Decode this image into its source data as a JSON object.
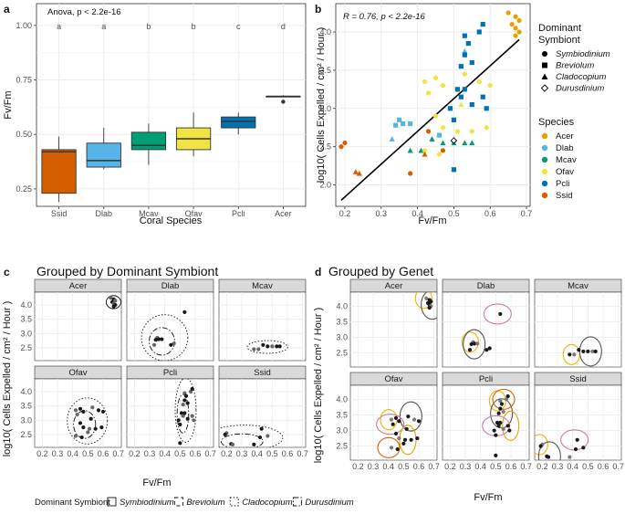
{
  "figure": {
    "panel_labels": [
      "a",
      "b",
      "c",
      "d"
    ],
    "panel_c_title": "Grouped by Dominant Symbiont",
    "panel_d_title": "Grouped by Genet",
    "facets": [
      "Acer",
      "Dlab",
      "Mcav",
      "Ofav",
      "Pcli",
      "Ssid"
    ]
  },
  "colors": {
    "Acer": "#E69F00",
    "Dlab": "#56B4E9",
    "Mcav": "#009E73",
    "Ofav": "#F0E442",
    "Pcli": "#0072B2",
    "Ssid": "#D55E00"
  },
  "chart_data": [
    {
      "type": "box",
      "panel": "a",
      "annotation": "Anova, p < 2.2e-16",
      "xlabel": "Coral Species",
      "ylabel": "Fv/Fm",
      "ylim": [
        0.17,
        1.1
      ],
      "yticks": [
        "0.25",
        "0.50",
        "0.75",
        "1.00"
      ],
      "categories": [
        "Ssid",
        "Dlab",
        "Mcav",
        "Ofav",
        "Pcli",
        "Acer"
      ],
      "letters": [
        "a",
        "a",
        "b",
        "b",
        "c",
        "d"
      ],
      "boxes": [
        {
          "min": 0.19,
          "q1": 0.23,
          "median": 0.42,
          "q3": 0.43,
          "max": 0.49
        },
        {
          "min": 0.34,
          "q1": 0.35,
          "median": 0.38,
          "q3": 0.46,
          "max": 0.53
        },
        {
          "min": 0.36,
          "q1": 0.43,
          "median": 0.45,
          "q3": 0.51,
          "max": 0.55
        },
        {
          "min": 0.4,
          "q1": 0.43,
          "median": 0.48,
          "q3": 0.53,
          "max": 0.6
        },
        {
          "min": 0.5,
          "q1": 0.53,
          "median": 0.56,
          "q3": 0.58,
          "max": 0.6
        },
        {
          "min": 0.67,
          "q1": 0.675,
          "median": 0.675,
          "q3": 0.675,
          "max": 0.68
        }
      ],
      "outliers": [
        {
          "category": "Acer",
          "y": 0.65
        }
      ]
    },
    {
      "type": "scatter",
      "panel": "b",
      "annotation": "R = 0.76, p < 2.2e-16",
      "xlabel": "Fv/Fm",
      "ylabel": "log10( Cells Expelled / cm² / Hour )",
      "xlim": [
        0.175,
        0.71
      ],
      "ylim": [
        1.72,
        4.37
      ],
      "xticks": [
        "0.2",
        "0.3",
        "0.4",
        "0.5",
        "0.6",
        "0.7"
      ],
      "yticks": [
        "2.0",
        "2.5",
        "3.0",
        "3.5",
        "4.0"
      ],
      "regression": {
        "x": [
          0.19,
          0.68
        ],
        "y": [
          1.8,
          3.9
        ]
      },
      "legend_symbiont_title": "Dominant Symbiont",
      "symbionts": [
        "Symbiodinium",
        "Breviolum",
        "Cladocopium",
        "Durusdinium"
      ],
      "legend_species_title": "Species",
      "points": [
        {
          "sp": "Acer",
          "shape": "circle",
          "x": 0.65,
          "y": 4.25
        },
        {
          "sp": "Acer",
          "shape": "circle",
          "x": 0.67,
          "y": 4.2
        },
        {
          "sp": "Acer",
          "shape": "circle",
          "x": 0.66,
          "y": 4.1
        },
        {
          "sp": "Acer",
          "shape": "circle",
          "x": 0.67,
          "y": 4.05
        },
        {
          "sp": "Acer",
          "shape": "circle",
          "x": 0.68,
          "y": 4.0
        },
        {
          "sp": "Acer",
          "shape": "circle",
          "x": 0.67,
          "y": 3.95
        },
        {
          "sp": "Acer",
          "shape": "circle",
          "x": 0.68,
          "y": 4.15
        },
        {
          "sp": "Dlab",
          "shape": "square",
          "x": 0.35,
          "y": 2.85
        },
        {
          "sp": "Dlab",
          "shape": "square",
          "x": 0.36,
          "y": 2.8
        },
        {
          "sp": "Dlab",
          "shape": "square",
          "x": 0.34,
          "y": 2.78
        },
        {
          "sp": "Dlab",
          "shape": "triangle",
          "x": 0.33,
          "y": 2.6
        },
        {
          "sp": "Dlab",
          "shape": "square",
          "x": 0.38,
          "y": 2.8
        },
        {
          "sp": "Dlab",
          "shape": "triangle",
          "x": 0.53,
          "y": 3.75
        },
        {
          "sp": "Dlab",
          "shape": "square",
          "x": 0.46,
          "y": 2.65
        },
        {
          "sp": "Dlab",
          "shape": "triangle",
          "x": 0.44,
          "y": 2.6
        },
        {
          "sp": "Mcav",
          "shape": "triangle",
          "x": 0.41,
          "y": 2.45
        },
        {
          "sp": "Mcav",
          "shape": "triangle",
          "x": 0.44,
          "y": 2.6
        },
        {
          "sp": "Mcav",
          "shape": "triangle",
          "x": 0.47,
          "y": 2.55
        },
        {
          "sp": "Mcav",
          "shape": "triangle",
          "x": 0.5,
          "y": 2.55
        },
        {
          "sp": "Mcav",
          "shape": "triangle",
          "x": 0.53,
          "y": 2.55
        },
        {
          "sp": "Mcav",
          "shape": "triangle",
          "x": 0.55,
          "y": 2.55
        },
        {
          "sp": "Mcav",
          "shape": "triangle",
          "x": 0.38,
          "y": 2.45
        },
        {
          "sp": "Ofav",
          "shape": "circle",
          "x": 0.42,
          "y": 3.35
        },
        {
          "sp": "Ofav",
          "shape": "circle",
          "x": 0.45,
          "y": 3.4
        },
        {
          "sp": "Ofav",
          "shape": "circle",
          "x": 0.47,
          "y": 3.3
        },
        {
          "sp": "Ofav",
          "shape": "circle",
          "x": 0.53,
          "y": 3.45
        },
        {
          "sp": "Ofav",
          "shape": "circle",
          "x": 0.57,
          "y": 3.35
        },
        {
          "sp": "Ofav",
          "shape": "circle",
          "x": 0.6,
          "y": 3.3
        },
        {
          "sp": "Ofav",
          "shape": "circle",
          "x": 0.43,
          "y": 3.2
        },
        {
          "sp": "Ofav",
          "shape": "circle",
          "x": 0.45,
          "y": 2.9
        },
        {
          "sp": "Ofav",
          "shape": "circle",
          "x": 0.47,
          "y": 2.75
        },
        {
          "sp": "Ofav",
          "shape": "circle",
          "x": 0.51,
          "y": 2.7
        },
        {
          "sp": "Ofav",
          "shape": "circle",
          "x": 0.55,
          "y": 2.7
        },
        {
          "sp": "Ofav",
          "shape": "circle",
          "x": 0.59,
          "y": 2.75
        },
        {
          "sp": "Ofav",
          "shape": "circle",
          "x": 0.42,
          "y": 2.45
        },
        {
          "sp": "Ofav",
          "shape": "circle",
          "x": 0.46,
          "y": 2.4
        },
        {
          "sp": "Ofav",
          "shape": "triangle",
          "x": 0.52,
          "y": 3.05
        },
        {
          "sp": "Ofav",
          "shape": "diamond",
          "x": 0.5,
          "y": 2.58
        },
        {
          "sp": "Pcli",
          "shape": "square",
          "x": 0.53,
          "y": 3.95
        },
        {
          "sp": "Pcli",
          "shape": "square",
          "x": 0.54,
          "y": 3.85
        },
        {
          "sp": "Pcli",
          "shape": "square",
          "x": 0.53,
          "y": 3.7
        },
        {
          "sp": "Pcli",
          "shape": "square",
          "x": 0.52,
          "y": 3.55
        },
        {
          "sp": "Pcli",
          "shape": "square",
          "x": 0.55,
          "y": 3.6
        },
        {
          "sp": "Pcli",
          "shape": "square",
          "x": 0.51,
          "y": 3.25
        },
        {
          "sp": "Pcli",
          "shape": "square",
          "x": 0.52,
          "y": 3.15
        },
        {
          "sp": "Pcli",
          "shape": "square",
          "x": 0.49,
          "y": 3.0
        },
        {
          "sp": "Pcli",
          "shape": "square",
          "x": 0.55,
          "y": 3.05
        },
        {
          "sp": "Pcli",
          "shape": "square",
          "x": 0.58,
          "y": 3.15
        },
        {
          "sp": "Pcli",
          "shape": "square",
          "x": 0.5,
          "y": 2.85
        },
        {
          "sp": "Pcli",
          "shape": "square",
          "x": 0.5,
          "y": 2.2
        },
        {
          "sp": "Pcli",
          "shape": "square",
          "x": 0.57,
          "y": 4.0
        },
        {
          "sp": "Pcli",
          "shape": "square",
          "x": 0.58,
          "y": 4.1
        },
        {
          "sp": "Pcli",
          "shape": "square",
          "x": 0.53,
          "y": 3.25
        },
        {
          "sp": "Pcli",
          "shape": "square",
          "x": 0.59,
          "y": 3.0
        },
        {
          "sp": "Ssid",
          "shape": "circle",
          "x": 0.2,
          "y": 2.55
        },
        {
          "sp": "Ssid",
          "shape": "circle",
          "x": 0.19,
          "y": 2.5
        },
        {
          "sp": "Ssid",
          "shape": "triangle",
          "x": 0.23,
          "y": 2.17
        },
        {
          "sp": "Ssid",
          "shape": "triangle",
          "x": 0.24,
          "y": 2.15
        },
        {
          "sp": "Ssid",
          "shape": "circle",
          "x": 0.38,
          "y": 2.15
        },
        {
          "sp": "Ssid",
          "shape": "circle",
          "x": 0.43,
          "y": 2.7
        },
        {
          "sp": "Ssid",
          "shape": "circle",
          "x": 0.47,
          "y": 2.45
        },
        {
          "sp": "Ssid",
          "shape": "triangle",
          "x": 0.42,
          "y": 2.4
        }
      ]
    },
    {
      "type": "faceted-scatter",
      "panel": "c",
      "title": "Grouped by Dominant Symbiont",
      "xlabel": "Fv/Fm",
      "ylabel": "log10( Cells Expelled / cm² / Hour )",
      "xlim": [
        0.15,
        0.72
      ],
      "ylim": [
        2.05,
        4.45
      ],
      "xticks": [
        "0.2",
        "0.3",
        "0.4",
        "0.5",
        "0.6",
        "0.7"
      ],
      "yticks": [
        "2.5",
        "3.0",
        "3.5",
        "4.0"
      ],
      "legend_title": "Dominant Symbiont",
      "legend_items": [
        "Symbiodinium",
        "Breviolum",
        "Cladocopium",
        "Durusdinium"
      ]
    },
    {
      "type": "faceted-scatter",
      "panel": "d",
      "title": "Grouped by Genet",
      "xlabel": "Fv/Fm",
      "ylabel": "log10( Cells Expelled / cm² / Hour )",
      "xlim": [
        0.15,
        0.72
      ],
      "ylim": [
        2.05,
        4.45
      ],
      "xticks": [
        "0.2",
        "0.3",
        "0.4",
        "0.5",
        "0.6",
        "0.7"
      ],
      "yticks": [
        "2.5",
        "3.0",
        "3.5",
        "4.0"
      ]
    }
  ]
}
